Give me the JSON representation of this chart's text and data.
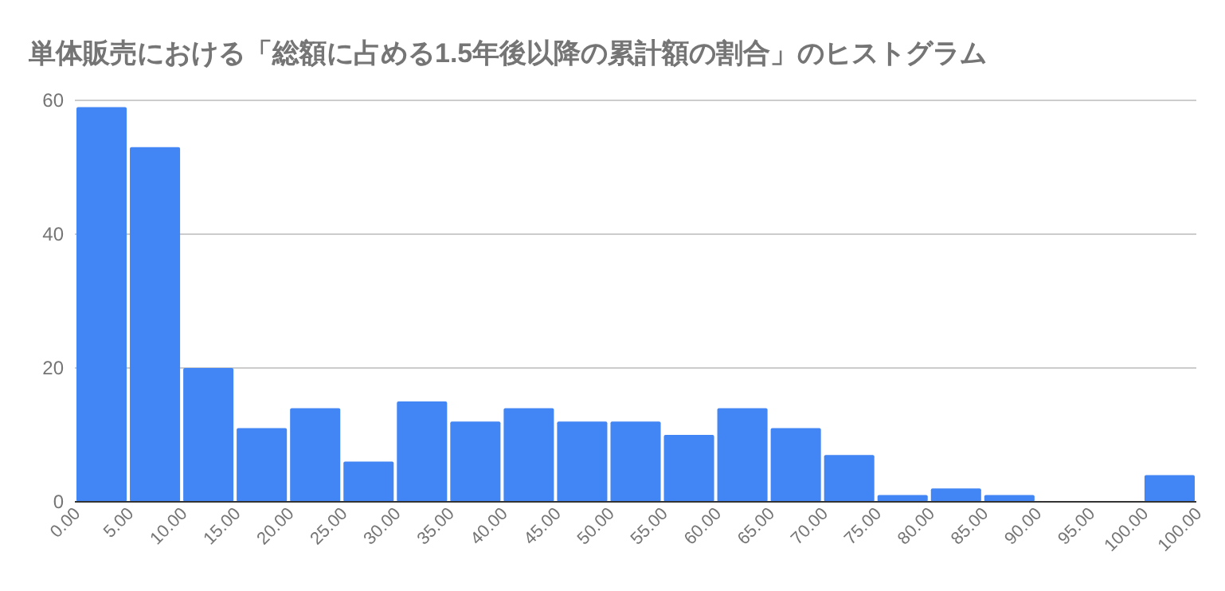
{
  "chart_data": {
    "type": "bar",
    "title": "単体販売における「総額に占める1.5年後以降の累計額の割合」のヒストグラム",
    "categories": [
      "0.00",
      "5.00",
      "10.00",
      "15.00",
      "20.00",
      "25.00",
      "30.00",
      "35.00",
      "40.00",
      "45.00",
      "50.00",
      "55.00",
      "60.00",
      "65.00",
      "70.00",
      "75.00",
      "80.00",
      "85.00",
      "90.00",
      "95.00",
      "100.00"
    ],
    "values": [
      59,
      53,
      20,
      11,
      14,
      6,
      15,
      12,
      14,
      12,
      12,
      10,
      14,
      11,
      7,
      1,
      2,
      1,
      0,
      0,
      4
    ],
    "annotations": [
      "100.00"
    ],
    "color": "#4285f4",
    "ylim": [
      0,
      60
    ],
    "yticks": [
      0,
      20,
      40,
      60
    ],
    "grid": "y"
  }
}
